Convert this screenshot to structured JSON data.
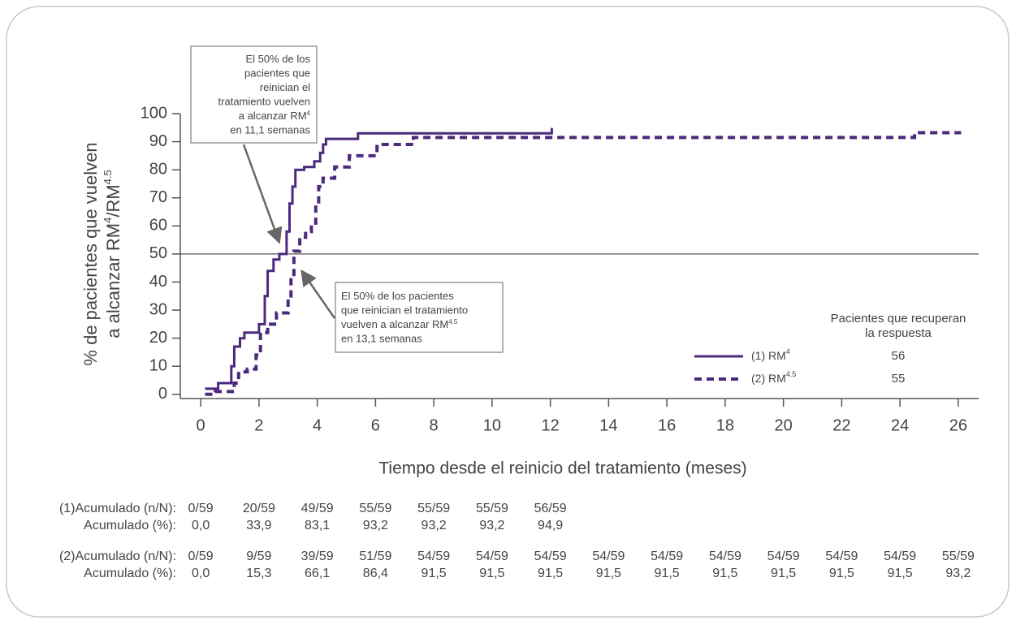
{
  "chart_data": {
    "type": "step-line",
    "ylabel": [
      [
        {
          "text": "% de pacientes que vuelven"
        }
      ],
      [
        {
          "text": "a alcanzar RM"
        },
        {
          "sup": "4"
        },
        {
          "text": "/RM"
        },
        {
          "sup": "4.5"
        }
      ]
    ],
    "xlabel": "Tiempo desde el reinicio del tratamiento (meses)",
    "xlim": [
      -0.7,
      26.7
    ],
    "xticks": [
      0,
      2,
      4,
      6,
      8,
      10,
      12,
      14,
      16,
      18,
      20,
      22,
      24,
      26
    ],
    "ylim": [
      -1.5,
      100
    ],
    "yticks": [
      0,
      10,
      20,
      30,
      40,
      50,
      60,
      70,
      80,
      90,
      100
    ],
    "hline": 50,
    "legend_title": [
      "Pacientes que recuperan",
      "la respuesta"
    ],
    "series": [
      {
        "name": "(1) RM",
        "name_sup": "4",
        "recovered": 56,
        "color": "#4b2a7b",
        "dash": false,
        "x": [
          0.15,
          0.6,
          0.6,
          1.05,
          1.05,
          1.15,
          1.15,
          1.35,
          1.35,
          1.5,
          1.5,
          2.0,
          2.0,
          2.2,
          2.2,
          2.3,
          2.3,
          2.5,
          2.5,
          2.7,
          2.7,
          2.95,
          2.95,
          3.05,
          3.05,
          3.15,
          3.15,
          3.25,
          3.25,
          3.55,
          3.55,
          3.9,
          3.9,
          4.1,
          4.1,
          4.2,
          4.2,
          4.3,
          4.3,
          5.4,
          5.4,
          12.05,
          12.05
        ],
        "values": [
          2,
          2,
          4,
          4,
          10,
          10,
          17,
          17,
          20,
          20,
          22,
          22,
          25,
          25,
          35,
          35,
          44,
          44,
          48,
          48,
          50,
          50,
          58,
          58,
          68,
          68,
          74,
          74,
          80,
          80,
          81,
          81,
          83,
          83,
          86,
          86,
          89,
          89,
          91,
          91,
          93,
          93,
          94.9
        ]
      },
      {
        "name": "(2) RM",
        "name_sup": "4.5",
        "recovered": 55,
        "color": "#4b2a7b",
        "dash": true,
        "x": [
          0.15,
          0.5,
          0.5,
          1.15,
          1.15,
          1.3,
          1.3,
          1.6,
          1.6,
          1.9,
          1.9,
          2.05,
          2.05,
          2.3,
          2.3,
          2.6,
          2.6,
          3.0,
          3.0,
          3.1,
          3.1,
          3.2,
          3.2,
          3.4,
          3.4,
          3.6,
          3.6,
          3.8,
          3.8,
          3.95,
          3.95,
          4.05,
          4.05,
          4.2,
          4.2,
          4.6,
          4.6,
          5.1,
          5.1,
          6.05,
          6.05,
          7.3,
          7.3,
          24.5,
          24.5,
          26.1
        ],
        "values": [
          0,
          0,
          1,
          1,
          4,
          4,
          8,
          8,
          9,
          9,
          14,
          14,
          22,
          22,
          25,
          25,
          29,
          29,
          34,
          34,
          42,
          42,
          51,
          51,
          56,
          56,
          58,
          58,
          61,
          61,
          68,
          68,
          74,
          74,
          77,
          77,
          81,
          81,
          85,
          85,
          89,
          89,
          91.5,
          91.5,
          93.2,
          93.2
        ]
      }
    ],
    "annotations": [
      {
        "lines": [
          [
            {
              "text": "El 50% de los"
            }
          ],
          [
            {
              "text": "pacientes que"
            }
          ],
          [
            {
              "text": "reinician el"
            }
          ],
          [
            {
              "text": "tratamiento vuelven"
            }
          ],
          [
            {
              "text": "a alcanzar RM"
            },
            {
              "sup": "4"
            }
          ],
          [
            {
              "text": "en 11,1 semanas"
            }
          ]
        ]
      },
      {
        "lines": [
          [
            {
              "text": "El 50% de los pacientes"
            }
          ],
          [
            {
              "text": "que reinician el tratamiento"
            }
          ],
          [
            {
              "text": "vuelven a alcanzar RM"
            },
            {
              "sup": "4.5"
            }
          ],
          [
            {
              "text": "en 13,1 semanas"
            }
          ]
        ]
      }
    ],
    "table": {
      "rows": [
        {
          "label": "(1)Acumulado (n/N):",
          "cells": [
            "0/59",
            "20/59",
            "49/59",
            "55/59",
            "55/59",
            "55/59",
            "56/59"
          ]
        },
        {
          "label": "Acumulado (%):",
          "cells": [
            "0,0",
            "33,9",
            "83,1",
            "93,2",
            "93,2",
            "93,2",
            "94,9"
          ]
        },
        {
          "label": "(2)Acumulado (n/N):",
          "cells": [
            "0/59",
            "9/59",
            "39/59",
            "51/59",
            "54/59",
            "54/59",
            "54/59",
            "54/59",
            "54/59",
            "54/59",
            "54/59",
            "54/59",
            "54/59",
            "55/59"
          ]
        },
        {
          "label": "Acumulado (%):",
          "cells": [
            "0,0",
            "15,3",
            "66,1",
            "86,4",
            "91,5",
            "91,5",
            "91,5",
            "91,5",
            "91,5",
            "91,5",
            "91,5",
            "91,5",
            "91,5",
            "93,2"
          ]
        }
      ]
    }
  }
}
